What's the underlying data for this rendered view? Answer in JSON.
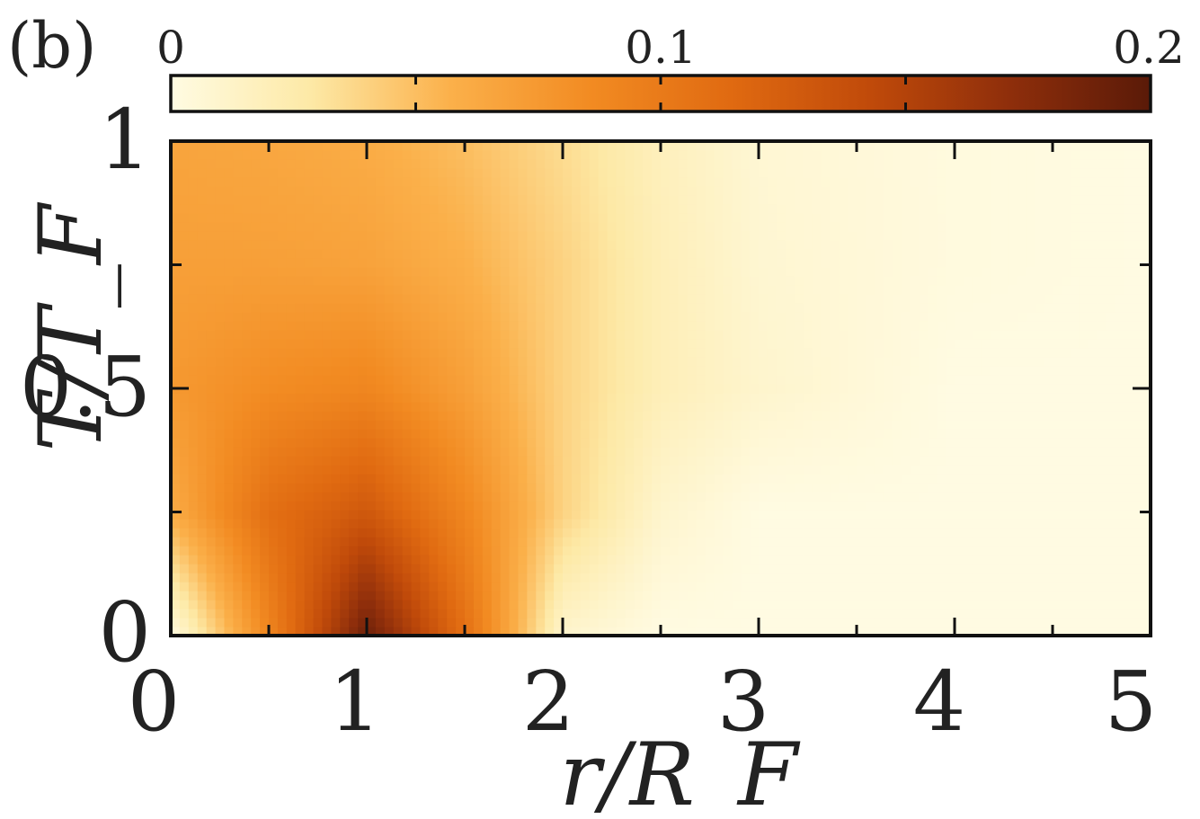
{
  "chart_data": {
    "type": "heatmap",
    "panel_label": "(b)",
    "xlabel": "r/R_F",
    "ylabel": "T/T_F",
    "xlim": [
      0,
      5
    ],
    "ylim": [
      0,
      1
    ],
    "x_ticks": [
      "0",
      "1",
      "2",
      "3",
      "4",
      "5"
    ],
    "y_ticks": [
      "0",
      "0.5",
      "1"
    ],
    "colorbar": {
      "orientation": "horizontal",
      "placement": "top",
      "range": [
        0,
        0.2
      ],
      "ticks": [
        "0",
        "0.1",
        "0.2"
      ],
      "colors": [
        "#fffbe2",
        "#fde9a6",
        "#fbb04a",
        "#f28b22",
        "#e06a11",
        "#c04a0a",
        "#8e2e0b",
        "#5a1a08"
      ]
    },
    "field": {
      "description": "approximate values read from the color map",
      "grid_x": [
        0,
        0.5,
        1,
        1.5,
        2,
        2.5,
        3,
        4,
        5
      ],
      "grid_y": [
        0,
        0.25,
        0.5,
        0.75,
        1
      ],
      "z": [
        [
          0.0,
          0.09,
          0.19,
          0.11,
          0.01,
          0.0,
          0.0,
          0.0,
          0.0
        ],
        [
          0.06,
          0.11,
          0.13,
          0.09,
          0.04,
          0.01,
          0.0,
          0.0,
          0.0
        ],
        [
          0.075,
          0.085,
          0.09,
          0.07,
          0.04,
          0.02,
          0.01,
          0.0,
          0.0
        ],
        [
          0.07,
          0.07,
          0.068,
          0.058,
          0.04,
          0.02,
          0.008,
          0.002,
          0.0
        ],
        [
          0.066,
          0.064,
          0.06,
          0.05,
          0.035,
          0.018,
          0.007,
          0.002,
          0.0
        ]
      ]
    }
  }
}
